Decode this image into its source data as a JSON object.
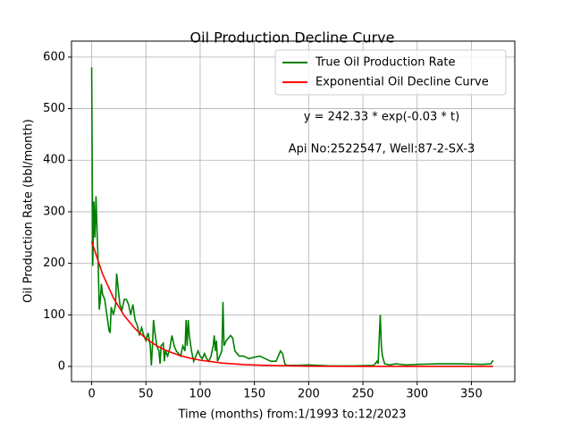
{
  "chart_data": {
    "type": "line",
    "title": "Oil Production Decline Curve",
    "xlabel": "Time (months) from:1/1993 to:12/2023",
    "ylabel": "Oil Production Rate (bbl/month)",
    "annotations": [
      "y = 242.33 * exp(-0.03 * t)",
      "Api No:2522547, Well:87-2-SX-3"
    ],
    "xlim": [
      -18.6,
      390
    ],
    "ylim": [
      -29.5,
      631
    ],
    "xticks": [
      0,
      50,
      100,
      150,
      200,
      250,
      300,
      350
    ],
    "yticks": [
      0,
      100,
      200,
      300,
      400,
      500,
      600
    ],
    "grid": true,
    "legend": "upper right",
    "series": [
      {
        "name": "True Oil Production Rate",
        "color": "#008000",
        "x": [
          0,
          1,
          2,
          3,
          4,
          5,
          6,
          7,
          8,
          9,
          10,
          12,
          14,
          16,
          17,
          18,
          20,
          22,
          23,
          24,
          26,
          28,
          30,
          32,
          34,
          36,
          38,
          40,
          42,
          44,
          46,
          48,
          50,
          52,
          54,
          55,
          56,
          57,
          58,
          60,
          62,
          63,
          64,
          66,
          67,
          68,
          70,
          72,
          74,
          76,
          78,
          80,
          82,
          84,
          86,
          87,
          88,
          89,
          90,
          92,
          94,
          96,
          98,
          100,
          102,
          104,
          106,
          108,
          110,
          112,
          113,
          114,
          115,
          116,
          118,
          120,
          121,
          122,
          124,
          126,
          128,
          130,
          132,
          134,
          136,
          140,
          145,
          150,
          155,
          160,
          165,
          170,
          174,
          176,
          178,
          180,
          190,
          200,
          220,
          240,
          260,
          263,
          264,
          266,
          267,
          268,
          270,
          275,
          280,
          290,
          300,
          320,
          340,
          360,
          368,
          370
        ],
        "values": [
          580,
          195,
          320,
          250,
          330,
          260,
          200,
          110,
          130,
          160,
          140,
          130,
          100,
          70,
          65,
          115,
          100,
          120,
          180,
          160,
          120,
          110,
          130,
          130,
          120,
          100,
          120,
          90,
          80,
          60,
          75,
          60,
          50,
          65,
          40,
          2,
          40,
          90,
          70,
          40,
          30,
          5,
          40,
          45,
          10,
          30,
          20,
          35,
          60,
          40,
          30,
          25,
          20,
          40,
          30,
          90,
          40,
          90,
          60,
          30,
          10,
          20,
          30,
          20,
          15,
          25,
          15,
          10,
          20,
          40,
          60,
          30,
          50,
          10,
          20,
          30,
          125,
          40,
          50,
          55,
          60,
          55,
          30,
          25,
          20,
          20,
          15,
          18,
          20,
          15,
          10,
          10,
          30,
          25,
          5,
          2,
          2,
          3,
          1,
          1,
          2,
          10,
          5,
          100,
          40,
          20,
          5,
          3,
          5,
          3,
          4,
          5,
          5,
          4,
          5,
          12
        ]
      },
      {
        "name": "Exponential Oil Decline Curve",
        "color": "#ff0000",
        "x": [
          0,
          10,
          20,
          30,
          40,
          50,
          60,
          70,
          80,
          90,
          100,
          120,
          140,
          160,
          200,
          250,
          300,
          370
        ],
        "values": [
          242.33,
          179.5,
          133,
          98.5,
          73,
          54.1,
          40,
          29.7,
          22,
          16.3,
          12.1,
          6.6,
          3.6,
          2,
          0.6,
          0.1,
          0.03,
          0.004
        ]
      }
    ]
  }
}
